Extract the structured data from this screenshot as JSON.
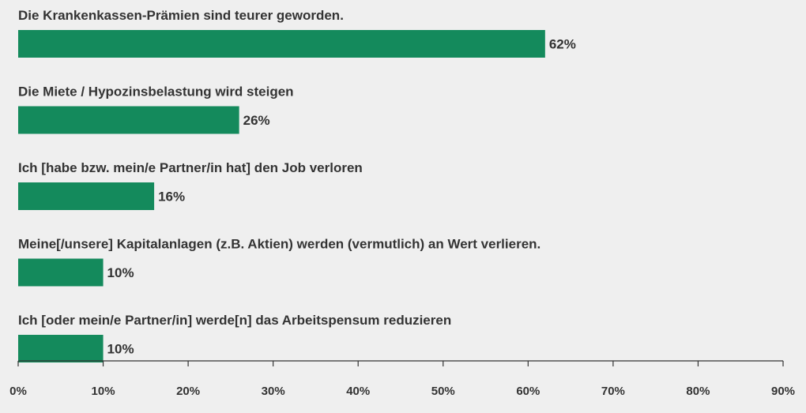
{
  "chart_data": {
    "type": "bar",
    "orientation": "horizontal",
    "categories": [
      "Die Krankenkassen-Prämien sind teurer geworden.",
      "Die Miete / Hypozinsbelastung wird steigen",
      "Ich [habe bzw. mein/e Partner/in hat] den Job verloren",
      "Meine[/unsere] Kapitalanlagen (z.B. Aktien) werden (vermutlich) an Wert verlieren.",
      "Ich [oder mein/e Partner/in] werde[n] das Arbeitspensum reduzieren"
    ],
    "values": [
      62,
      26,
      16,
      10,
      10
    ],
    "value_labels": [
      "62%",
      "26%",
      "16%",
      "10%",
      "10%"
    ],
    "xlim": [
      0,
      90
    ],
    "xticks": [
      0,
      10,
      20,
      30,
      40,
      50,
      60,
      70,
      80,
      90
    ],
    "xtick_labels": [
      "0%",
      "10%",
      "20%",
      "30%",
      "40%",
      "50%",
      "60%",
      "70%",
      "80%",
      "90%"
    ],
    "grid": false,
    "colors": {
      "bar": "#148a5c",
      "background": "#efefef",
      "text": "#333333",
      "axis": "#333333"
    }
  }
}
